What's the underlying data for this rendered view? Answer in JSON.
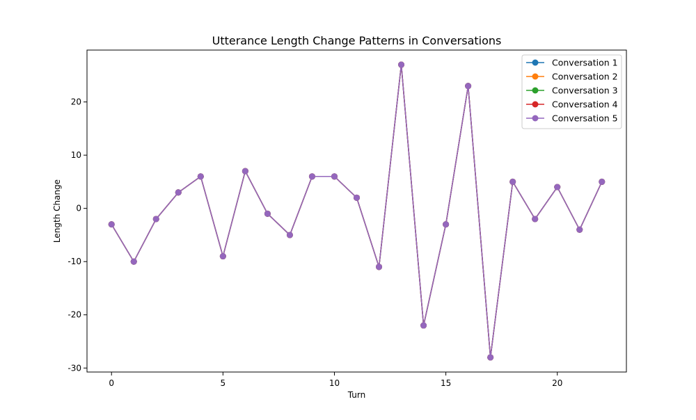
{
  "chart_data": {
    "type": "line",
    "title": "Utterance Length Change Patterns in Conversations",
    "xlabel": "Turn",
    "ylabel": "Length Change",
    "xlim": [
      -1.1,
      23.1
    ],
    "ylim": [
      -30.75,
      29.75
    ],
    "xticks": [
      0,
      5,
      10,
      15,
      20
    ],
    "yticks": [
      -30,
      -20,
      -10,
      0,
      10,
      20
    ],
    "grid": false,
    "legend_position": "top-right",
    "x": [
      0,
      1,
      2,
      3,
      4,
      5,
      6,
      7,
      8,
      9,
      10,
      11,
      12,
      13,
      14,
      15,
      16,
      17,
      18,
      19,
      20,
      21,
      22
    ],
    "series": [
      {
        "name": "Conversation 1",
        "color": "#1f77b4",
        "values": [
          -3,
          -10,
          -2,
          3,
          6,
          -9,
          7,
          -1,
          -5,
          6,
          6,
          2,
          -11,
          27,
          -22,
          -3,
          23,
          -28,
          5,
          -2,
          4,
          -4,
          5
        ]
      },
      {
        "name": "Conversation 2",
        "color": "#ff7f0e",
        "values": [
          -3,
          -10,
          -2,
          3,
          6,
          -9,
          7,
          -1,
          -5,
          6,
          6,
          2,
          -11,
          27,
          -22,
          -3,
          23,
          -28,
          5,
          -2,
          4,
          -4,
          5
        ]
      },
      {
        "name": "Conversation 3",
        "color": "#2ca02c",
        "values": [
          -3,
          -10,
          -2,
          3,
          6,
          -9,
          7,
          -1,
          -5,
          6,
          6,
          2,
          -11,
          27,
          -22,
          -3,
          23,
          -28,
          5,
          -2,
          4,
          -4,
          5
        ]
      },
      {
        "name": "Conversation 4",
        "color": "#d62728",
        "values": [
          -3,
          -10,
          -2,
          3,
          6,
          -9,
          7,
          -1,
          -5,
          6,
          6,
          2,
          -11,
          27,
          -22,
          -3,
          23,
          -28,
          5,
          -2,
          4,
          -4,
          5
        ]
      },
      {
        "name": "Conversation 5",
        "color": "#9467bd",
        "values": [
          -3,
          -10,
          -2,
          3,
          6,
          -9,
          7,
          -1,
          -5,
          6,
          6,
          2,
          -11,
          27,
          -22,
          -3,
          23,
          -28,
          5,
          -2,
          4,
          -4,
          5
        ]
      }
    ]
  }
}
